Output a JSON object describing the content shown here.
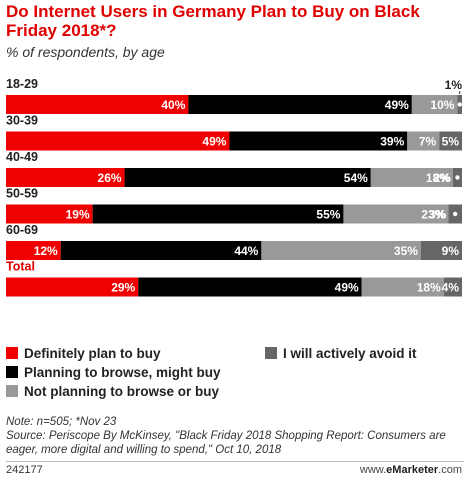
{
  "header": {
    "title": "Do Internet Users in Germany Plan to Buy on Black Friday 2018*?",
    "subtitle": "% of respondents, by age"
  },
  "footer": {
    "note": "Note: n=505; *Nov 23",
    "source": "Source: Periscope By McKinsey, \"Black Friday 2018 Shopping Report: Consumers are eager, more digital and willing to spend,\" Oct 10, 2018",
    "code": "242177",
    "brand_prefix": "www.",
    "brand_name": "eMarketer",
    "brand_suffix": ".com"
  },
  "colors": {
    "definitely": "#f00000",
    "browse": "#000000",
    "not_planning": "#999999",
    "avoid": "#666666",
    "title": "#e00000"
  },
  "chart_data": {
    "type": "bar",
    "orientation": "horizontal",
    "stacked": true,
    "categories": [
      "18-29",
      "30-39",
      "40-49",
      "50-59",
      "60-69",
      "Total"
    ],
    "series": [
      {
        "name": "Definitely plan to buy",
        "values": [
          40,
          49,
          26,
          19,
          12,
          29
        ]
      },
      {
        "name": "Planning to browse, might buy",
        "values": [
          49,
          39,
          54,
          55,
          44,
          49
        ]
      },
      {
        "name": "Not planning to browse or buy",
        "values": [
          10,
          7,
          18,
          23,
          35,
          18
        ]
      },
      {
        "name": "I will actively avoid it",
        "values": [
          1,
          5,
          2,
          3,
          9,
          4
        ]
      }
    ],
    "data_labels": [
      [
        "40%",
        "49%",
        "10%",
        "1%"
      ],
      [
        "49%",
        "39%",
        "7%",
        "5%"
      ],
      [
        "26%",
        "54%",
        "18%",
        "2%"
      ],
      [
        "19%",
        "55%",
        "23%",
        "3%"
      ],
      [
        "12%",
        "44%",
        "35%",
        "9%"
      ],
      [
        "29%",
        "49%",
        "18%",
        "4%"
      ]
    ],
    "highlighted_category": "Total",
    "legend_position": "bottom",
    "legend_entries": [
      {
        "label": "Definitely plan to buy",
        "series": 0
      },
      {
        "label": "I will actively avoid it",
        "series": 3
      },
      {
        "label": "Planning to browse, might buy",
        "series": 1
      },
      {
        "label": "Not planning to browse or buy",
        "series": 2
      }
    ]
  }
}
